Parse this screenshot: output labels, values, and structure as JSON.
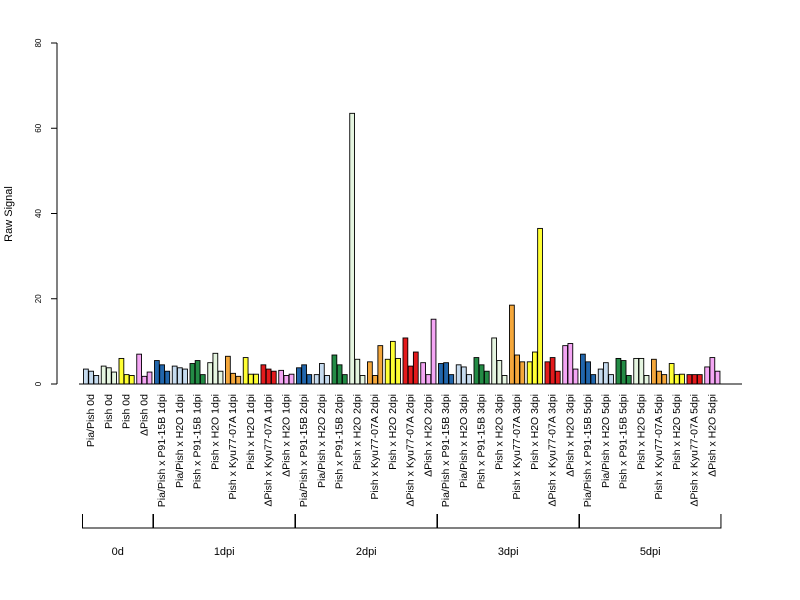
{
  "chart_data": {
    "type": "bar",
    "ylabel": "Raw Signal",
    "ylim": [
      0,
      80
    ],
    "yticks": [
      0,
      20,
      40,
      60,
      80
    ],
    "grid": false,
    "colors": {
      "lightblue": "#c6dbef",
      "blue": "#2166ac",
      "lightgreen": "#e5f5e0",
      "green": "#238b45",
      "orange": "#f4a73b",
      "yellow": "#ffff33",
      "red": "#e31a1c",
      "pink": "#f4a6f4"
    },
    "groups": [
      {
        "label": "Pia/Pish 0d",
        "color": "lightblue",
        "values": [
          3.5,
          3.0,
          2.0
        ]
      },
      {
        "label": "Pish 0d",
        "color": "lightgreen",
        "values": [
          4.2,
          3.8,
          2.8
        ]
      },
      {
        "label": "Pish 0d",
        "color": "yellow",
        "values": [
          6.0,
          2.2,
          2.0
        ]
      },
      {
        "label": "ΔPish 0d",
        "color": "pink",
        "values": [
          7.0,
          1.8,
          2.8
        ]
      },
      {
        "label": "Pia/Pish x P91-15B 1dpi",
        "color": "blue",
        "values": [
          5.5,
          4.5,
          3.0
        ]
      },
      {
        "label": "Pia/Pish x H2O 1dpi",
        "color": "lightblue",
        "values": [
          4.2,
          3.8,
          3.5
        ]
      },
      {
        "label": "Pish x P91-15B 1dpi",
        "color": "green",
        "values": [
          4.8,
          5.5,
          2.2
        ]
      },
      {
        "label": "Pish x H2O 1dpi",
        "color": "lightgreen",
        "values": [
          5.0,
          7.2,
          3.0
        ]
      },
      {
        "label": "Pish x Kyu77-07A 1dpi",
        "color": "orange",
        "values": [
          6.5,
          2.5,
          1.8
        ]
      },
      {
        "label": "Pish x H2O 1dpi",
        "color": "yellow",
        "values": [
          6.2,
          2.3,
          2.3
        ]
      },
      {
        "label": "ΔPish x Kyu77-07A 1dpi",
        "color": "red",
        "values": [
          4.5,
          3.5,
          3.0
        ]
      },
      {
        "label": "ΔPish x H2O 1dpi",
        "color": "pink",
        "values": [
          3.2,
          2.0,
          2.3
        ]
      },
      {
        "label": "Pia/Pish x P91-15B 2dpi",
        "color": "blue",
        "values": [
          3.8,
          4.5,
          2.2
        ]
      },
      {
        "label": "Pia/Pish x H2O 2dpi",
        "color": "lightblue",
        "values": [
          2.2,
          4.8,
          2.0
        ]
      },
      {
        "label": "Pish x P91-15B 2dpi",
        "color": "green",
        "values": [
          6.8,
          4.5,
          2.2
        ]
      },
      {
        "label": "Pish x H2O 2dpi",
        "color": "lightgreen",
        "values": [
          63.5,
          5.8,
          2.0
        ]
      },
      {
        "label": "Pish x Kyu77-07A 2dpi",
        "color": "orange",
        "values": [
          5.2,
          2.0,
          9.0
        ]
      },
      {
        "label": "Pish x H2O 2dpi",
        "color": "yellow",
        "values": [
          5.8,
          10.0,
          6.0
        ]
      },
      {
        "label": "ΔPish x Kyu77-07A 2dpi",
        "color": "red",
        "values": [
          10.8,
          4.2,
          7.5
        ]
      },
      {
        "label": "ΔPish x H2O 2dpi",
        "color": "pink",
        "values": [
          5.0,
          2.2,
          15.2
        ]
      },
      {
        "label": "Pia/Pish x P91-15B 3dpi",
        "color": "blue",
        "values": [
          4.8,
          5.0,
          2.2
        ]
      },
      {
        "label": "Pia/Pish x H2O 3dpi",
        "color": "lightblue",
        "values": [
          4.5,
          4.0,
          2.2
        ]
      },
      {
        "label": "Pish x P91-15B 3dpi",
        "color": "green",
        "values": [
          6.2,
          4.5,
          3.0
        ]
      },
      {
        "label": "Pish x H2O 3dpi",
        "color": "lightgreen",
        "values": [
          10.8,
          5.5,
          2.0
        ]
      },
      {
        "label": "Pish x Kyu77-07A 3dpi",
        "color": "orange",
        "values": [
          18.5,
          6.8,
          5.2
        ]
      },
      {
        "label": "Pish x H2O 3dpi",
        "color": "yellow",
        "values": [
          5.2,
          7.5,
          36.5
        ]
      },
      {
        "label": "ΔPish x Kyu77-07A 3dpi",
        "color": "red",
        "values": [
          5.2,
          6.2,
          3.0
        ]
      },
      {
        "label": "ΔPish x H2O 3dpi",
        "color": "pink",
        "values": [
          9.0,
          9.5,
          3.5
        ]
      },
      {
        "label": "Pia/Pish x P91-15B 5dpi",
        "color": "blue",
        "values": [
          7.0,
          5.2,
          2.2
        ]
      },
      {
        "label": "Pia/Pish x H2O 5dpi",
        "color": "lightblue",
        "values": [
          3.5,
          5.0,
          2.2
        ]
      },
      {
        "label": "Pish x P91-15B 5dpi",
        "color": "green",
        "values": [
          6.0,
          5.5,
          2.0
        ]
      },
      {
        "label": "Pish x H2O 5dpi",
        "color": "lightgreen",
        "values": [
          6.0,
          6.0,
          2.0
        ]
      },
      {
        "label": "Pish x Kyu77-07A 5dpi",
        "color": "orange",
        "values": [
          5.8,
          3.0,
          2.2
        ]
      },
      {
        "label": "Pish x H2O 5dpi",
        "color": "yellow",
        "values": [
          4.8,
          2.2,
          2.3
        ]
      },
      {
        "label": "ΔPish x Kyu77-07A 5dpi",
        "color": "red",
        "values": [
          2.2,
          2.2,
          2.2
        ]
      },
      {
        "label": "ΔPish x H2O 5dpi",
        "color": "pink",
        "values": [
          4.0,
          6.2,
          3.0
        ]
      }
    ],
    "timepoints": [
      {
        "label": "0d",
        "from": 0,
        "to": 3
      },
      {
        "label": "1dpi",
        "from": 4,
        "to": 11
      },
      {
        "label": "2dpi",
        "from": 12,
        "to": 19
      },
      {
        "label": "3dpi",
        "from": 20,
        "to": 27
      },
      {
        "label": "5dpi",
        "from": 28,
        "to": 35
      }
    ]
  }
}
